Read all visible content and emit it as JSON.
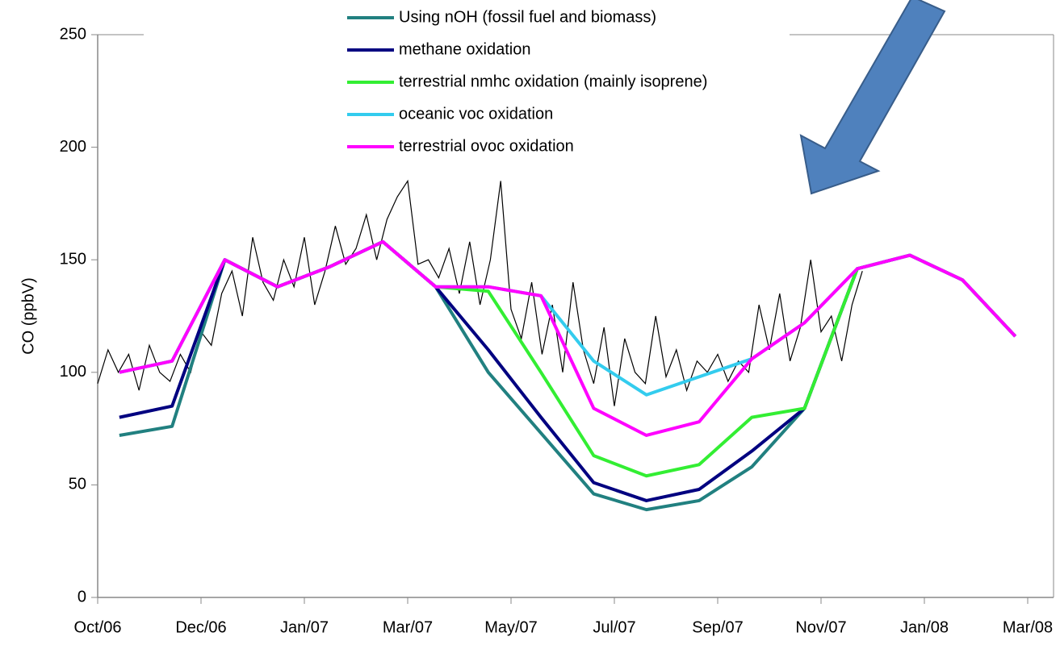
{
  "chart_data": {
    "type": "line",
    "y_label": "CO (ppbV)",
    "xlim": [
      0,
      9.25
    ],
    "xticks": [
      {
        "value": 0,
        "label": "Oct/06"
      },
      {
        "value": 1,
        "label": "Dec/06"
      },
      {
        "value": 2,
        "label": "Jan/07"
      },
      {
        "value": 3,
        "label": "Mar/07"
      },
      {
        "value": 4,
        "label": "May/07"
      },
      {
        "value": 5,
        "label": "Jul/07"
      },
      {
        "value": 6,
        "label": "Sep/07"
      },
      {
        "value": 7,
        "label": "Nov/07"
      },
      {
        "value": 8,
        "label": "Jan/08"
      },
      {
        "value": 9,
        "label": "Mar/08"
      }
    ],
    "ylim": [
      0,
      250
    ],
    "yticks": [
      0,
      50,
      100,
      150,
      200,
      250
    ],
    "x": [
      0.21,
      0.72,
      1.23,
      1.74,
      2.25,
      2.76,
      3.27,
      3.78,
      4.29,
      4.8,
      5.31,
      5.82,
      6.33,
      6.84,
      7.35,
      7.86,
      8.37,
      8.88
    ],
    "series": [
      {
        "name": "Using nOH (fossil fuel and biomass)",
        "color": "#218080",
        "values": [
          72,
          76,
          150,
          138,
          147,
          158,
          138,
          100,
          73,
          46,
          39,
          43,
          58,
          84,
          146,
          152,
          141,
          116
        ]
      },
      {
        "name": "methane oxidation",
        "color": "#000080",
        "values": [
          80,
          85,
          150,
          138,
          147,
          158,
          138,
          110,
          80,
          51,
          43,
          48,
          65,
          84,
          146,
          152,
          141,
          116
        ]
      },
      {
        "name": "terrestrial nmhc oxidation (mainly isoprene)",
        "color": "#33ee33",
        "values": [
          100,
          105,
          150,
          138,
          147,
          158,
          138,
          136,
          100,
          63,
          54,
          59,
          80,
          84,
          146,
          152,
          141,
          116
        ]
      },
      {
        "name": "oceanic voc oxidation",
        "color": "#33ccee",
        "values": [
          100,
          105,
          150,
          138,
          147,
          158,
          138,
          138,
          134,
          105,
          90,
          98,
          106,
          122,
          146,
          152,
          141,
          116
        ]
      },
      {
        "name": "terrestrial ovoc oxidation",
        "color": "#ff00ff",
        "values": [
          100,
          105,
          150,
          138,
          147,
          158,
          138,
          138,
          134,
          84,
          72,
          78,
          106,
          122,
          146,
          152,
          141,
          116
        ]
      }
    ],
    "observations": {
      "color": "#000000",
      "x": [
        0,
        0.1,
        0.2,
        0.3,
        0.4,
        0.5,
        0.6,
        0.7,
        0.8,
        0.9,
        1,
        1.1,
        1.2,
        1.3,
        1.4,
        1.5,
        1.6,
        1.7,
        1.8,
        1.9,
        2,
        2.1,
        2.2,
        2.3,
        2.4,
        2.5,
        2.6,
        2.7,
        2.8,
        2.9,
        3,
        3.1,
        3.2,
        3.3,
        3.4,
        3.5,
        3.6,
        3.7,
        3.8,
        3.9,
        4,
        4.1,
        4.2,
        4.3,
        4.4,
        4.5,
        4.6,
        4.7,
        4.8,
        4.9,
        5,
        5.1,
        5.2,
        5.3,
        5.4,
        5.5,
        5.6,
        5.7,
        5.8,
        5.9,
        6,
        6.1,
        6.2,
        6.3,
        6.4,
        6.5,
        6.6,
        6.7,
        6.8,
        6.9,
        7,
        7.1,
        7.2,
        7.3,
        7.4
      ],
      "values": [
        95,
        110,
        100,
        108,
        92,
        112,
        100,
        96,
        108,
        100,
        118,
        112,
        135,
        145,
        125,
        160,
        140,
        132,
        150,
        138,
        160,
        130,
        145,
        165,
        148,
        155,
        170,
        150,
        168,
        178,
        185,
        148,
        150,
        142,
        155,
        135,
        158,
        130,
        150,
        185,
        128,
        115,
        140,
        108,
        130,
        100,
        140,
        110,
        95,
        120,
        85,
        115,
        100,
        95,
        125,
        98,
        110,
        92,
        105,
        100,
        108,
        96,
        105,
        100,
        130,
        110,
        135,
        105,
        120,
        150,
        118,
        125,
        105,
        130,
        145
      ]
    }
  }
}
